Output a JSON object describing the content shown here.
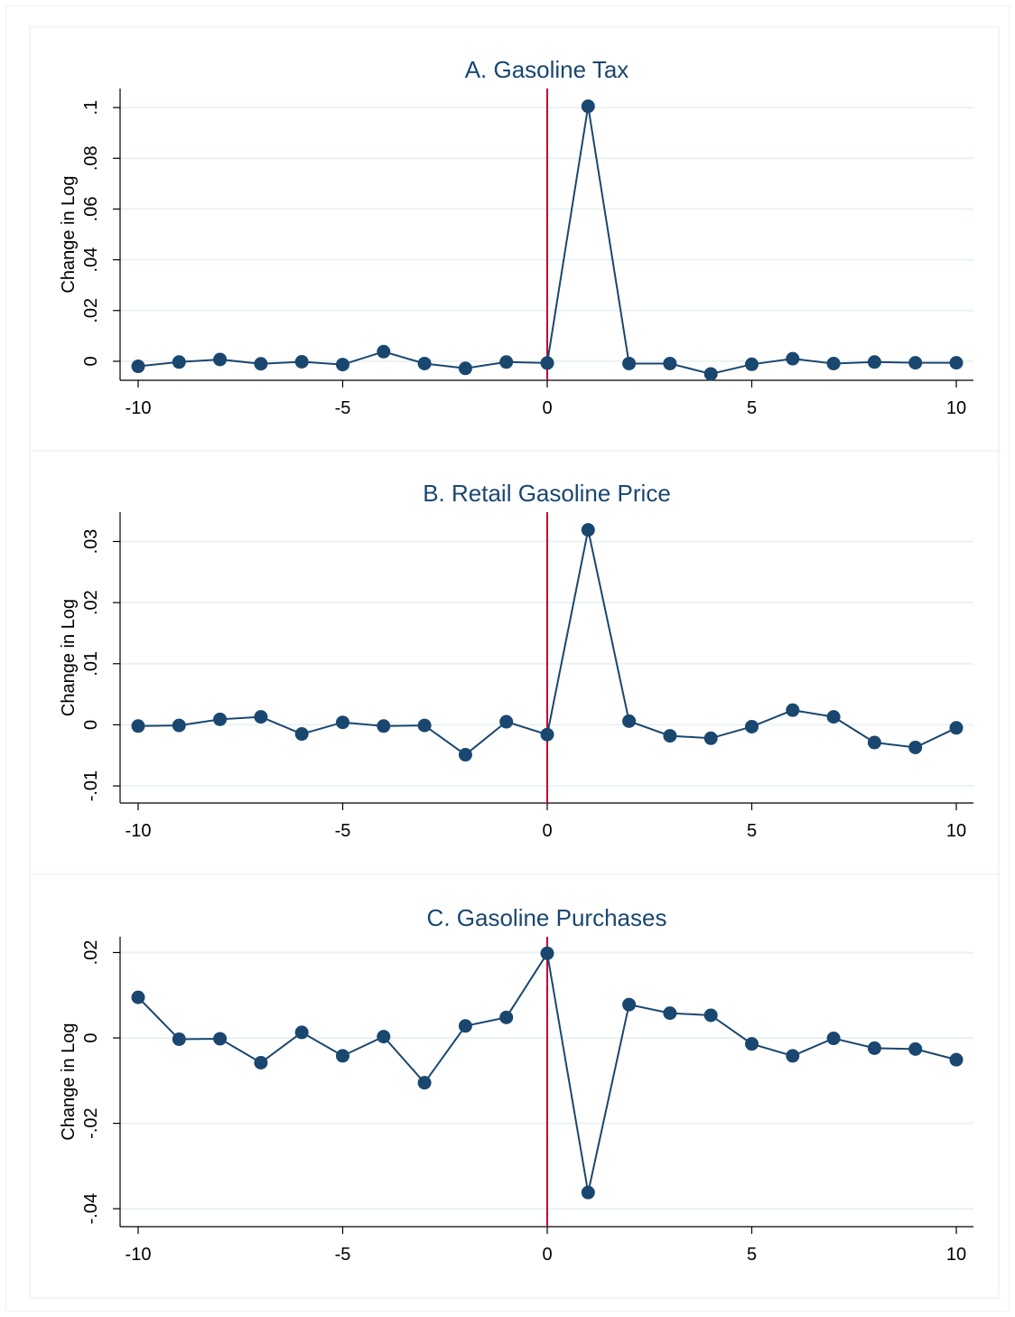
{
  "colors": {
    "series": "#1a476f",
    "event_line": "#c10534",
    "grid": "#eaf2f3",
    "axis": "#000000",
    "title": "#1a476f",
    "panel_border": "#e6eef0"
  },
  "chart_data": [
    {
      "type": "line",
      "title": "A. Gasoline Tax",
      "ylabel": "Change in Log",
      "xlabel": "",
      "xlim": [
        -10,
        10
      ],
      "ylim": [
        -0.0075,
        0.1075
      ],
      "xticks": [
        -10,
        -5,
        0,
        5,
        10
      ],
      "xtick_labels": [
        "-10",
        "-5",
        "0",
        "5",
        "10"
      ],
      "yticks": [
        0,
        0.02,
        0.04,
        0.06,
        0.08,
        0.1
      ],
      "ytick_labels": [
        "0",
        ".02",
        ".04",
        ".06",
        ".08",
        ".1"
      ],
      "vline_x": 0,
      "grid": true,
      "x": [
        -10,
        -9,
        -8,
        -7,
        -6,
        -5,
        -4,
        -3,
        -2,
        -1,
        0,
        1,
        2,
        3,
        4,
        5,
        6,
        7,
        8,
        9,
        10
      ],
      "values": [
        -0.002,
        -0.0003,
        0.0007,
        -0.001,
        -0.0002,
        -0.0013,
        0.0038,
        -0.0009,
        -0.0028,
        -0.0003,
        -0.0007,
        0.1005,
        -0.0009,
        -0.0009,
        -0.005,
        -0.0012,
        0.001,
        -0.0009,
        -0.0003,
        -0.0006,
        -0.0006
      ]
    },
    {
      "type": "line",
      "title": "B. Retail Gasoline Price",
      "ylabel": "Change in Log",
      "xlabel": "",
      "xlim": [
        -10,
        10
      ],
      "ylim": [
        -0.0128,
        0.0348
      ],
      "xticks": [
        -10,
        -5,
        0,
        5,
        10
      ],
      "xtick_labels": [
        "-10",
        "-5",
        "0",
        "5",
        "10"
      ],
      "yticks": [
        -0.01,
        0,
        0.01,
        0.02,
        0.03
      ],
      "ytick_labels": [
        "-.01",
        "0",
        ".01",
        ".02",
        ".03"
      ],
      "vline_x": 0,
      "grid": true,
      "x": [
        -10,
        -9,
        -8,
        -7,
        -6,
        -5,
        -4,
        -3,
        -2,
        -1,
        0,
        1,
        2,
        3,
        4,
        5,
        6,
        7,
        8,
        9,
        10
      ],
      "values": [
        -0.0002,
        -0.0001,
        0.0009,
        0.0013,
        -0.0015,
        0.0004,
        -0.0002,
        -0.0001,
        -0.0049,
        0.0005,
        -0.0016,
        0.0319,
        0.0006,
        -0.0018,
        -0.0022,
        -0.0003,
        0.0024,
        0.0013,
        -0.0029,
        -0.0037,
        -0.0005
      ]
    },
    {
      "type": "line",
      "title": "C. Gasoline Purchases",
      "ylabel": "Change in Log",
      "xlabel": "",
      "xlim": [
        -10,
        10
      ],
      "ylim": [
        -0.0442,
        0.0237
      ],
      "xticks": [
        -10,
        -5,
        0,
        5,
        10
      ],
      "xtick_labels": [
        "-10",
        "-5",
        "0",
        "5",
        "10"
      ],
      "yticks": [
        -0.04,
        -0.02,
        0,
        0.02
      ],
      "ytick_labels": [
        "-.04",
        "-.02",
        "0",
        ".02"
      ],
      "vline_x": 0,
      "grid": true,
      "x": [
        -10,
        -9,
        -8,
        -7,
        -6,
        -5,
        -4,
        -3,
        -2,
        -1,
        0,
        1,
        2,
        3,
        4,
        5,
        6,
        7,
        8,
        9,
        10
      ],
      "values": [
        0.0095,
        -0.0003,
        -0.0002,
        -0.0058,
        0.0013,
        -0.0042,
        0.0003,
        -0.0105,
        0.0028,
        0.0048,
        0.0198,
        -0.0362,
        0.0078,
        0.0058,
        0.0053,
        -0.0014,
        -0.0042,
        -0.0001,
        -0.0024,
        -0.0026,
        -0.0051
      ]
    }
  ]
}
